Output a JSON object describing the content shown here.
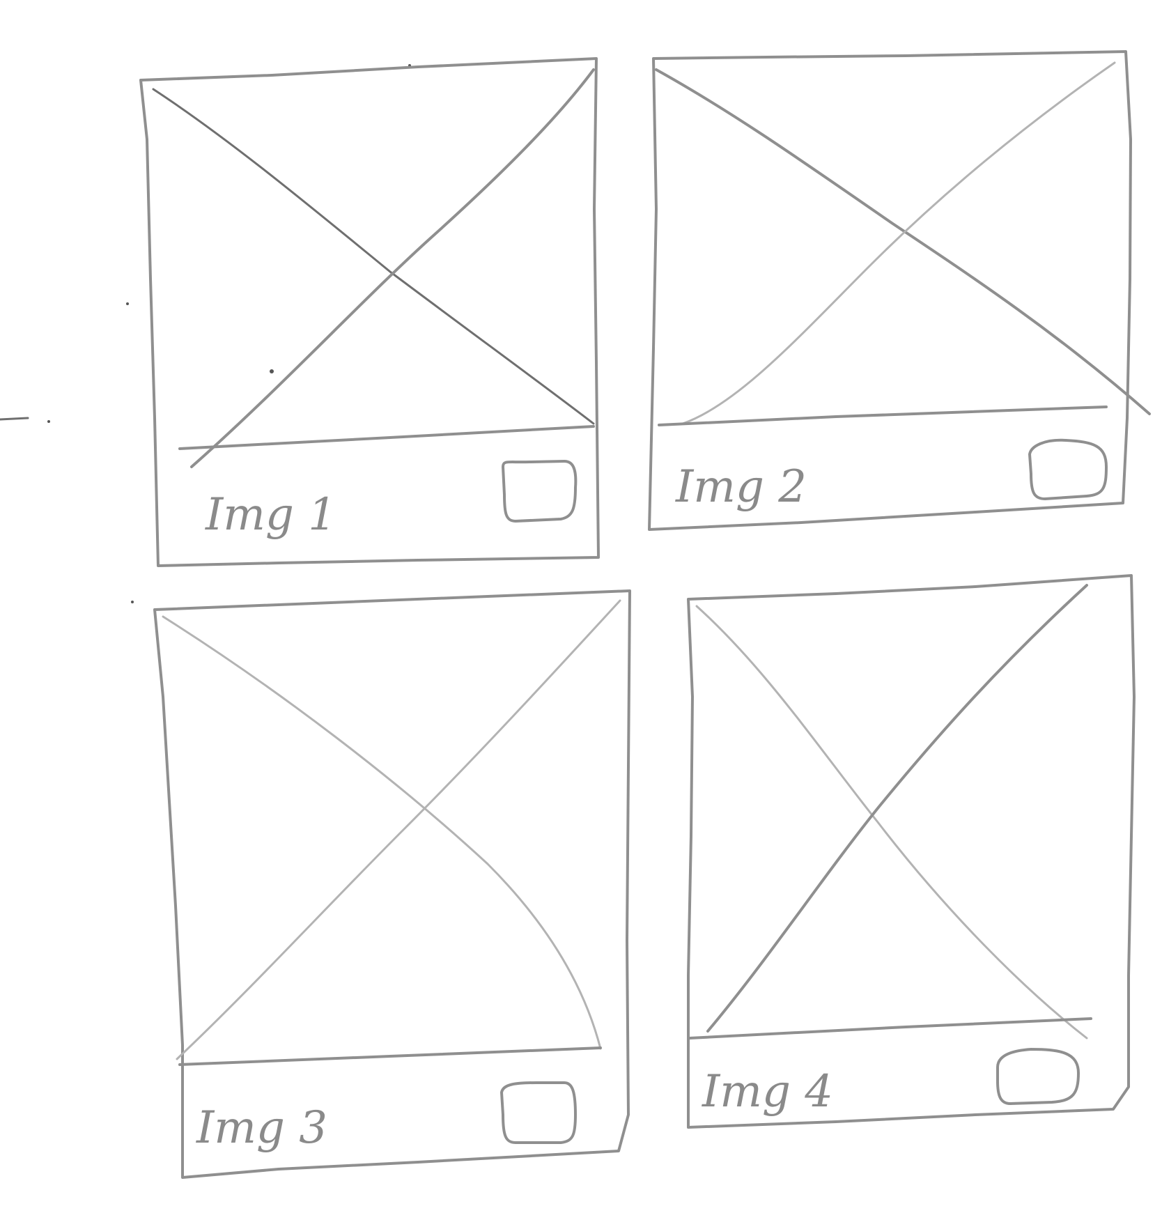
{
  "cards": [
    {
      "caption": "Img 1",
      "icon": "checkbox-icon",
      "checked": false
    },
    {
      "caption": "Img 2",
      "icon": "checkbox-icon",
      "checked": false
    },
    {
      "caption": "Img 3",
      "icon": "checkbox-icon",
      "checked": false
    },
    {
      "caption": "Img 4",
      "icon": "checkbox-icon",
      "checked": false
    }
  ],
  "placeholder_icon": "image-placeholder-icon",
  "colors": {
    "background": "#ffffff",
    "pencil": "#8f8f8f",
    "pencil_light": "#b3b3b3",
    "pencil_dark": "#6f6f6f"
  }
}
